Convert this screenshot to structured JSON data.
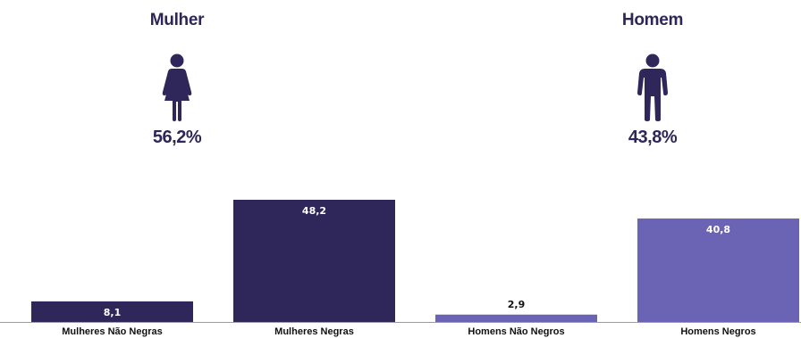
{
  "gender": [
    {
      "title": "Mulher",
      "percent": "56,2%",
      "icon": "female-person-icon"
    },
    {
      "title": "Homem",
      "percent": "43,8%",
      "icon": "male-person-icon"
    }
  ],
  "colors": {
    "dark": "#2f2659",
    "light": "#6b63b3",
    "text_dark": "#2e2657"
  },
  "chart_data": {
    "type": "bar",
    "categories": [
      "Mulheres Não Negras",
      "Mulheres Negras",
      "Homens Não Negros",
      "Homens Negros"
    ],
    "values": [
      8.1,
      48.2,
      2.9,
      40.8
    ],
    "value_labels": [
      "8,1",
      "48,2",
      "2,9",
      "40,8"
    ],
    "bar_colors": [
      "#2f2659",
      "#2f2659",
      "#6b63b3",
      "#6b63b3"
    ],
    "title": "",
    "xlabel": "",
    "ylabel": "",
    "ylim": [
      0,
      48.2
    ],
    "grid": false,
    "legend": "none"
  }
}
